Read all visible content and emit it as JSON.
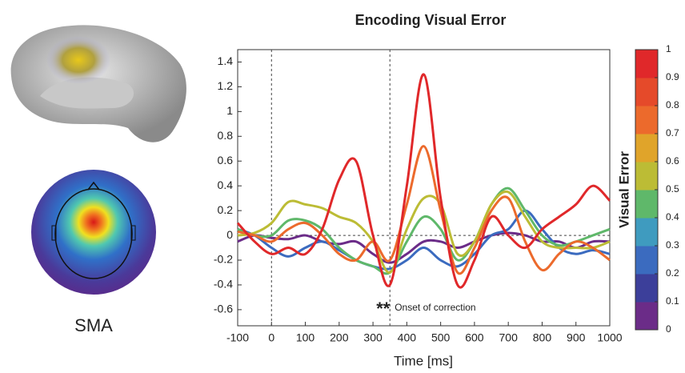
{
  "chart_data": {
    "type": "line",
    "title": "Encoding Visual Error",
    "xlabel": "Time [ms]",
    "x": [
      -100,
      -50,
      0,
      50,
      100,
      150,
      200,
      250,
      300,
      350,
      400,
      450,
      500,
      550,
      600,
      650,
      700,
      750,
      800,
      850,
      900,
      950,
      1000
    ],
    "series": [
      {
        "color": "#6b2c88",
        "values": [
          -0.05,
          0.0,
          -0.02,
          -0.03,
          0.0,
          -0.05,
          -0.07,
          -0.05,
          -0.15,
          -0.22,
          -0.15,
          -0.05,
          -0.05,
          -0.1,
          -0.05,
          0.0,
          0.02,
          0.0,
          -0.05,
          -0.05,
          -0.1,
          -0.05,
          -0.05
        ]
      },
      {
        "color": "#3b6bbf",
        "values": [
          0.05,
          0.0,
          -0.1,
          -0.17,
          -0.1,
          -0.05,
          -0.12,
          -0.2,
          -0.25,
          -0.27,
          -0.2,
          -0.1,
          -0.2,
          -0.25,
          -0.15,
          0.0,
          0.05,
          0.2,
          0.05,
          -0.1,
          -0.15,
          -0.12,
          -0.15
        ]
      },
      {
        "color": "#5fb86a",
        "values": [
          0.05,
          0.0,
          0.0,
          0.12,
          0.12,
          0.05,
          -0.1,
          -0.2,
          -0.25,
          -0.3,
          -0.05,
          0.15,
          0.05,
          -0.2,
          -0.05,
          0.25,
          0.38,
          0.2,
          0.0,
          -0.08,
          -0.05,
          0.0,
          0.05
        ]
      },
      {
        "color": "#bcbc35",
        "values": [
          0.0,
          0.02,
          0.1,
          0.27,
          0.25,
          0.22,
          0.15,
          0.1,
          -0.05,
          -0.3,
          0.05,
          0.3,
          0.25,
          -0.15,
          -0.05,
          0.25,
          0.35,
          0.15,
          -0.05,
          -0.1,
          -0.1,
          -0.1,
          -0.05
        ]
      },
      {
        "color": "#ec6a2c",
        "values": [
          0.03,
          0.0,
          -0.05,
          0.05,
          0.1,
          0.0,
          -0.15,
          -0.2,
          -0.05,
          -0.2,
          0.25,
          0.72,
          0.2,
          -0.3,
          -0.1,
          0.2,
          0.3,
          -0.05,
          -0.28,
          -0.15,
          -0.05,
          -0.1,
          -0.2
        ]
      },
      {
        "color": "#e0282a",
        "values": [
          0.1,
          -0.05,
          -0.15,
          -0.1,
          -0.15,
          0.05,
          0.45,
          0.6,
          0.0,
          -0.4,
          0.4,
          1.3,
          0.3,
          -0.4,
          -0.2,
          0.15,
          0.0,
          -0.1,
          0.05,
          0.15,
          0.25,
          0.4,
          0.28
        ]
      }
    ],
    "xlim": [
      -100,
      1000
    ],
    "ylim": [
      -0.73,
      1.5
    ],
    "xticks": [
      -100,
      0,
      100,
      200,
      300,
      400,
      500,
      600,
      700,
      800,
      900,
      1000
    ],
    "yticks": [
      -0.6,
      -0.4,
      -0.2,
      0,
      0.2,
      0.4,
      0.6,
      0.8,
      1,
      1.2,
      1.4
    ],
    "vlines": [
      0,
      350
    ],
    "hline": 0,
    "annotations": [
      {
        "text": "**",
        "x": 330
      },
      {
        "text": "Onset of correction",
        "x": 350
      }
    ],
    "colorbar": {
      "label": "Visual Error",
      "lim": [
        0,
        1
      ],
      "ticks": [
        0,
        0.1,
        0.2,
        0.3,
        0.4,
        0.5,
        0.6,
        0.7,
        0.8,
        0.9,
        1
      ],
      "colors": [
        "#6b2c88",
        "#3c3f9a",
        "#3b6bbf",
        "#3f9bbf",
        "#5fb86a",
        "#bcbc35",
        "#e0a42a",
        "#ec6a2c",
        "#e54a2a",
        "#e0282a"
      ]
    }
  },
  "figure_label": "SMA"
}
